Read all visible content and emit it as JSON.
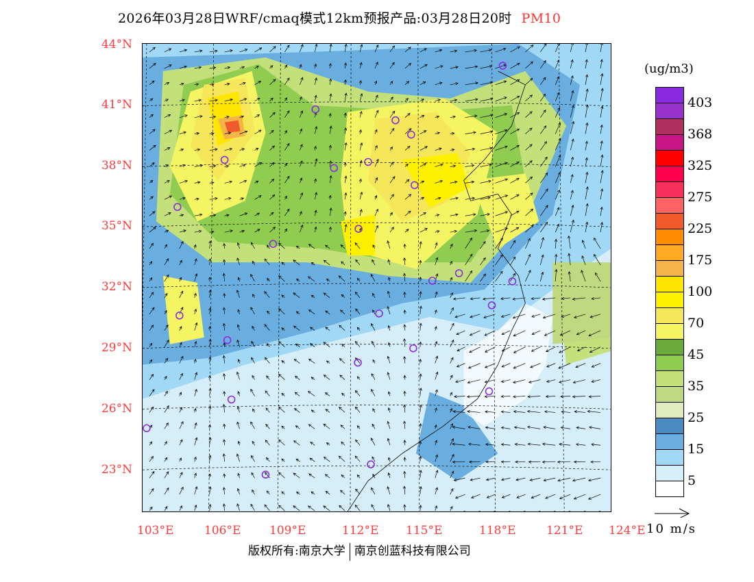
{
  "title": {
    "main": "2026年03月28日WRF/cmaq模式12km预报产品:03月28日20时",
    "variable": "PM10"
  },
  "lat_labels": [
    "44°N",
    "41°N",
    "38°N",
    "35°N",
    "32°N",
    "29°N",
    "26°N",
    "23°N"
  ],
  "lon_labels": [
    "103°E",
    "106°E",
    "109°E",
    "112°E",
    "115°E",
    "118°E",
    "121°E",
    "124°E"
  ],
  "colorbar": {
    "unit": "(ug/m3)",
    "colors": [
      "#8a2be2",
      "#9932cc",
      "#b03060",
      "#c71585",
      "#ff0000",
      "#ff0050",
      "#f5305a",
      "#ff6464",
      "#f05a2d",
      "#ff8c00",
      "#ffaa22",
      "#f5b44a",
      "#ffe600",
      "#fff000",
      "#f5e65a",
      "#f5f564",
      "#6aaa3a",
      "#8fcc50",
      "#c3e07a",
      "#c0d880",
      "#e0ebc0",
      "#4a8cc0",
      "#6aaee0",
      "#a0d8f5",
      "#d5eefa",
      "#ffffff"
    ],
    "labels": [
      "403",
      "368",
      "325",
      "275",
      "225",
      "175",
      "100",
      "70",
      "45",
      "35",
      "25",
      "15",
      "5"
    ]
  },
  "wind_reference": {
    "label": "10 m/s"
  },
  "footer": {
    "left": "版权所有:南京大学",
    "right": "南京创蓝科技有限公司"
  }
}
